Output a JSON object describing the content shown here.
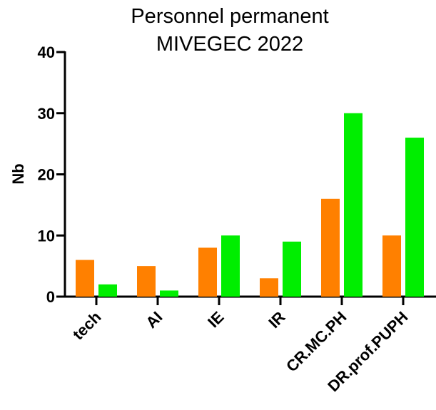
{
  "chart_data": {
    "type": "bar",
    "title_lines": [
      "Personnel permanent",
      "MIVEGEC 2022"
    ],
    "xlabel": "",
    "ylabel": "Nb",
    "ylim": [
      0,
      40
    ],
    "yticks": [
      "0",
      "10",
      "20",
      "30",
      "40"
    ],
    "categories": [
      "tech",
      "AI",
      "IE",
      "IR",
      "CR.MC.PH",
      "DR.prof.PUPH"
    ],
    "series": [
      {
        "values": [
          6,
          5,
          8,
          3,
          16,
          10
        ],
        "color": "#ff8000"
      },
      {
        "values": [
          2,
          1,
          10,
          9,
          30,
          26
        ],
        "color": "#00ee00"
      }
    ],
    "legend": "none",
    "grid": false
  }
}
